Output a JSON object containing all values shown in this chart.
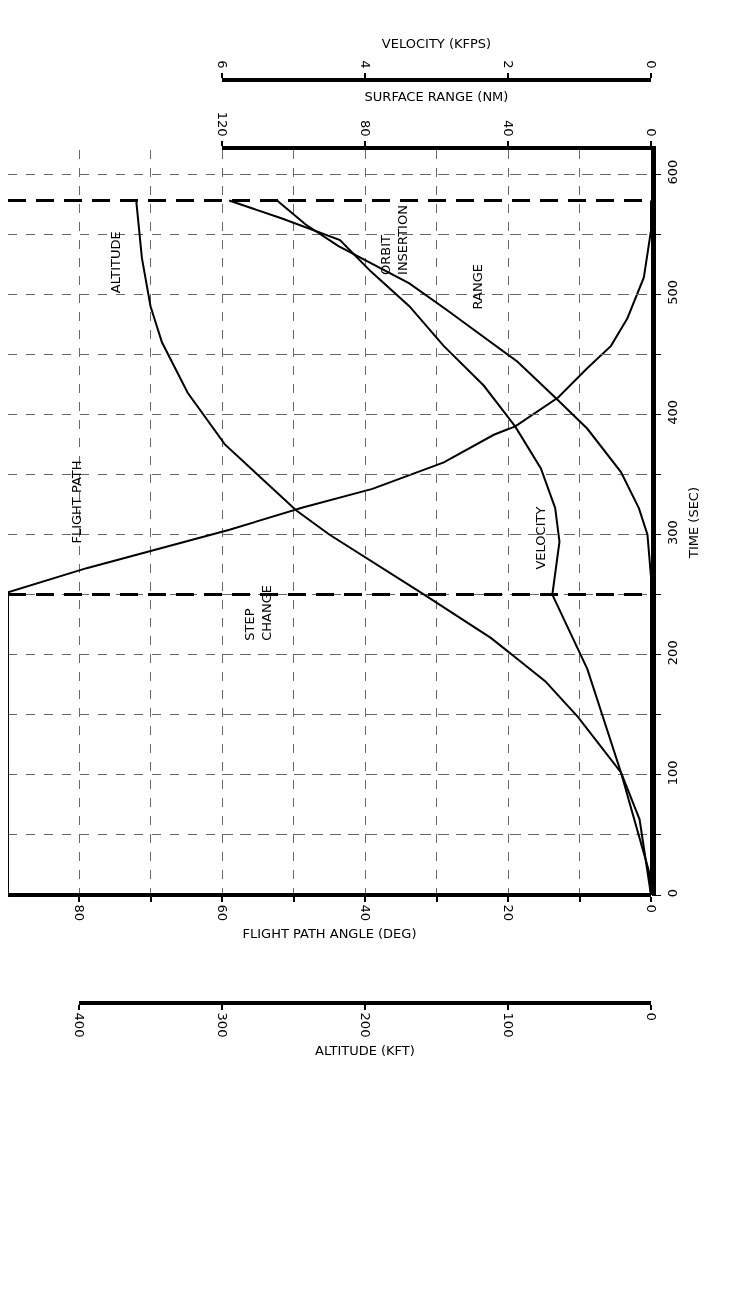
{
  "chart_data": [
    {
      "type": "line",
      "xlabel": "FLIGHT PATH ANGLE (DEG)",
      "ylabel": "TIME (SEC)",
      "x2label": "SURFACE RANGE (NM)",
      "xlim": [
        90,
        0
      ],
      "xticks": [
        0,
        {
          "value": 10,
          "label": null
        },
        20,
        {
          "value": 30,
          "label": null
        },
        40,
        {
          "value": 50,
          "label": null
        },
        60,
        {
          "value": 70,
          "label": null
        },
        80
      ],
      "x2lim": [
        120,
        0
      ],
      "x2ticks": [
        0,
        40,
        80,
        120
      ],
      "ylim": [
        0,
        620
      ],
      "yticks": [
        0,
        {
          "value": 50,
          "label": null
        },
        100,
        {
          "value": 150,
          "label": null
        },
        200,
        {
          "value": 250,
          "label": null
        },
        300,
        {
          "value": 350,
          "label": null
        },
        400,
        {
          "value": 450,
          "label": null
        },
        500,
        {
          "value": 550,
          "label": null
        },
        600
      ],
      "series": [
        {
          "color": "#000000",
          "x": [
            90,
            90,
            79,
            69,
            59,
            49,
            39,
            29,
            22,
            19,
            13,
            9,
            5.6,
            3.3,
            1,
            0,
            0
          ],
          "values": [
            0,
            252,
            272,
            288,
            304,
            322,
            338,
            360,
            383,
            390,
            414,
            438,
            457,
            480,
            514,
            553,
            578
          ]
        },
        {
          "color": "#000000",
          "axis": "x2",
          "x": [
            0,
            0,
            1,
            3.4,
            8.4,
            17.8,
            26.8,
            37.4,
            57.2,
            67.6,
            87.4,
            96.6,
            104.6
          ],
          "values": [
            0,
            265,
            300,
            322,
            352,
            388,
            414,
            444,
            487,
            509,
            540,
            558,
            578
          ]
        }
      ],
      "ref_lines": [
        {
          "axis": "y",
          "value": 250,
          "color": "#000000",
          "line_style": "dashed"
        },
        {
          "axis": "y",
          "value": 578,
          "color": "#000000",
          "line_style": "dashed"
        }
      ],
      "annotations": [
        "FLIGHT PATH",
        "ALTITUDE",
        "VELOCITY",
        "RANGE",
        "STEP\nCHANGE",
        "ORBIT\nINSERTION"
      ],
      "grid": true,
      "marker": "none",
      "line_style": "solid"
    },
    {
      "type": "line",
      "xlabel": "ALTITUDE (KFT)",
      "x2label": "VELOCITY (KFPS)",
      "xlim": [
        400,
        0
      ],
      "xticks": [
        0,
        100,
        200,
        300,
        400
      ],
      "x2lim": [
        6,
        0
      ],
      "x2ticks": [
        0,
        2,
        4,
        6
      ],
      "ylim": [
        0,
        620
      ],
      "yticks": [
        0,
        100,
        200,
        300,
        400,
        500,
        600
      ],
      "tick_labels": "x",
      "series": [
        {
          "color": "#000000",
          "x": [
            0,
            1.5,
            21,
            51,
            74,
            112,
            160,
            225,
            248,
            298,
            324,
            342,
            350,
            356,
            360
          ],
          "values": [
            0,
            20,
            102,
            148,
            178,
            214,
            251,
            300,
            320,
            375,
            418,
            460,
            490,
            530,
            578
          ]
        },
        {
          "color": "#000000",
          "axis": "x2",
          "x": [
            0,
            0.16,
            0.42,
            0.89,
            1.38,
            1.28,
            1.34,
            1.54,
            1.9,
            2.34,
            2.9,
            3.38,
            3.92,
            4.35,
            5.16,
            5.9
          ],
          "values": [
            0,
            63,
            102,
            188,
            250,
            294,
            322,
            355,
            390,
            424,
            457,
            490,
            519,
            545,
            563,
            578
          ]
        }
      ],
      "marker": "none",
      "line_style": "solid"
    }
  ]
}
